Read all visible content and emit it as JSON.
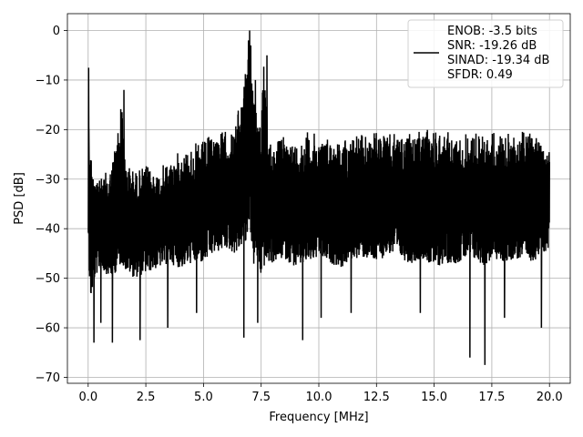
{
  "chart_data": {
    "type": "line",
    "title": "",
    "xlabel": "Frequency [MHz]",
    "ylabel": "PSD [dB]",
    "xlim": [
      -0.9,
      20.9
    ],
    "ylim": [
      -71.2,
      3.4
    ],
    "x_ticks": [
      0.0,
      2.5,
      5.0,
      7.5,
      10.0,
      12.5,
      15.0,
      17.5,
      20.0
    ],
    "x_tick_labels": [
      "0.0",
      "2.5",
      "5.0",
      "7.5",
      "10.0",
      "12.5",
      "15.0",
      "17.5",
      "20.0"
    ],
    "y_ticks": [
      0,
      -10,
      -20,
      -30,
      -40,
      -50,
      -60,
      -70
    ],
    "y_tick_labels": [
      "0",
      "−10",
      "−20",
      "−30",
      "−40",
      "−50",
      "−60",
      "−70"
    ],
    "grid": true,
    "legend_position": "top-right",
    "legend_entries": [
      "ENOB: -3.5 bits",
      "SNR: -19.26 dB",
      "SINAD: -19.34 dB",
      "SFDR: 0.49"
    ],
    "series": [
      {
        "color": "#000000",
        "description": "dense noisy PSD trace from 0 to 20 MHz, noise band roughly -45 to -20 dB, peak 0 dB near 7.0 MHz",
        "x": [
          0.0,
          0.02,
          0.05,
          0.1,
          0.2,
          0.3,
          0.5,
          1.0,
          1.5,
          1.52,
          2.0,
          2.5,
          3.0,
          3.5,
          4.0,
          4.5,
          5.0,
          5.5,
          6.0,
          6.3,
          6.5,
          6.7,
          6.85,
          7.0,
          7.15,
          7.3,
          7.5,
          7.6,
          7.8,
          8.0,
          8.5,
          9.0,
          9.5,
          10.0,
          10.5,
          11.0,
          11.5,
          12.0,
          12.5,
          13.0,
          13.5,
          14.0,
          14.5,
          15.0,
          15.5,
          16.0,
          16.5,
          17.0,
          17.2,
          17.5,
          18.0,
          18.5,
          19.0,
          19.5,
          20.0
        ],
        "y": [
          -40,
          -7.5,
          -18,
          -22,
          -28,
          -26,
          -30,
          -27,
          -12,
          -25,
          -28,
          -27,
          -28,
          -26,
          -24,
          -23,
          -22,
          -20,
          -20,
          -20,
          -16,
          -10,
          -7,
          0,
          -8,
          -12,
          -18,
          -5,
          -21,
          -22,
          -21,
          -22,
          -20,
          -21,
          -21,
          -22,
          -20,
          -21,
          -20,
          -21,
          -20,
          -21,
          -20,
          -19,
          -20,
          -21,
          -20,
          -20,
          -21,
          -20,
          -21,
          -20,
          -20,
          -20,
          -22
        ],
        "min_envelope": [
          -43,
          -45,
          -50,
          -55,
          -52,
          -50,
          -48,
          -50,
          -47,
          -48,
          -50,
          -49,
          -48,
          -47,
          -48,
          -47,
          -47,
          -45,
          -44,
          -45,
          -45,
          -43,
          -44,
          -38,
          -48,
          -46,
          -50,
          -48,
          -47,
          -47,
          -46,
          -48,
          -47,
          -46,
          -47,
          -48,
          -46,
          -46,
          -47,
          -45,
          -46,
          -47,
          -46,
          -48,
          -47,
          -47,
          -46,
          -47,
          -48,
          -46,
          -47,
          -46,
          -47,
          -46,
          -44
        ],
        "deep_dips": [
          [
            0.25,
            -63
          ],
          [
            0.55,
            -59
          ],
          [
            1.05,
            -63
          ],
          [
            2.25,
            -62.5
          ],
          [
            3.45,
            -60
          ],
          [
            4.7,
            -57
          ],
          [
            6.75,
            -62
          ],
          [
            7.35,
            -59
          ],
          [
            9.3,
            -62.5
          ],
          [
            10.1,
            -58
          ],
          [
            11.4,
            -57
          ],
          [
            14.4,
            -57
          ],
          [
            16.55,
            -66
          ],
          [
            17.2,
            -67.5
          ],
          [
            18.05,
            -58
          ],
          [
            19.65,
            -60
          ]
        ],
        "spikes": [
          [
            0.02,
            -7.5
          ],
          [
            0.03,
            -20
          ],
          [
            0.04,
            -26
          ],
          [
            1.55,
            -12
          ],
          [
            6.95,
            -2
          ],
          [
            7.0,
            0
          ],
          [
            7.05,
            -3
          ],
          [
            7.25,
            -10
          ],
          [
            7.75,
            -5
          ]
        ]
      }
    ]
  }
}
